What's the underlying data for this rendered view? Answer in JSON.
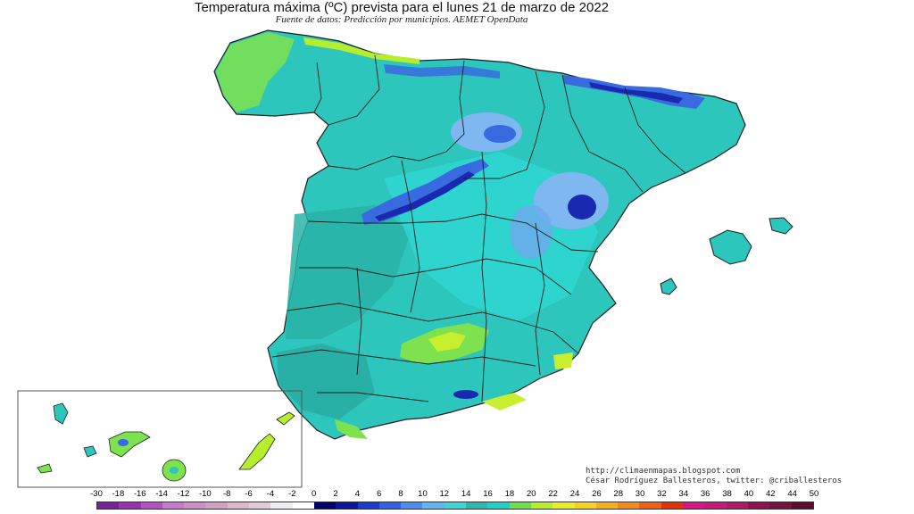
{
  "header": {
    "title": "Temperatura máxima (ºC) prevista para el lunes 21 de marzo de 2022",
    "subtitle": "Fuente de datos: Predicción por municipios. AEMET OpenData"
  },
  "credits": {
    "line1": "http://climaenmapas.blogspot.com",
    "line2": "César Rodríguez Ballesteros, twitter: @criballesteros"
  },
  "legend": {
    "ticks": [
      "-30",
      "-18",
      "-16",
      "-14",
      "-12",
      "-10",
      "-8",
      "-6",
      "-4",
      "-2",
      "0",
      "2",
      "4",
      "6",
      "8",
      "10",
      "12",
      "14",
      "16",
      "18",
      "20",
      "22",
      "24",
      "26",
      "28",
      "30",
      "32",
      "34",
      "36",
      "38",
      "40",
      "42",
      "44",
      "50"
    ],
    "colors": [
      "#7a1fa2",
      "#9a2fb8",
      "#b44fc8",
      "#c77acc",
      "#cf8ec4",
      "#d4a0c0",
      "#dcb8cc",
      "#e2cbd8",
      "#ececf2",
      "#ffffff",
      "#000070",
      "#0a15a0",
      "#1a3ad0",
      "#2f62e8",
      "#4a8cf0",
      "#5fb6f0",
      "#3dd6d6",
      "#2ab8b0",
      "#1fd0c8",
      "#6de04a",
      "#b6ee2e",
      "#e8ee22",
      "#f6d21e",
      "#f8b01a",
      "#f48a18",
      "#f06010",
      "#e83008",
      "#e0108a",
      "#c8187a",
      "#b01868",
      "#901050",
      "#781040",
      "#600c30"
    ]
  },
  "map": {
    "region": "Spain",
    "palette": {
      "sea": "#ffffff",
      "teal_dark": "#2ab2a8",
      "teal": "#2cc6bc",
      "cyan": "#2fd8d4",
      "light_blue": "#7fb7f0",
      "blue": "#3a6ae0",
      "dark_blue": "#1a2ab0",
      "green": "#7ee24e",
      "yellow_green": "#c8ee2e",
      "boundary": "#1e1e1e"
    },
    "islands": [
      "Balearic Islands",
      "Canary Islands (inset)"
    ]
  }
}
